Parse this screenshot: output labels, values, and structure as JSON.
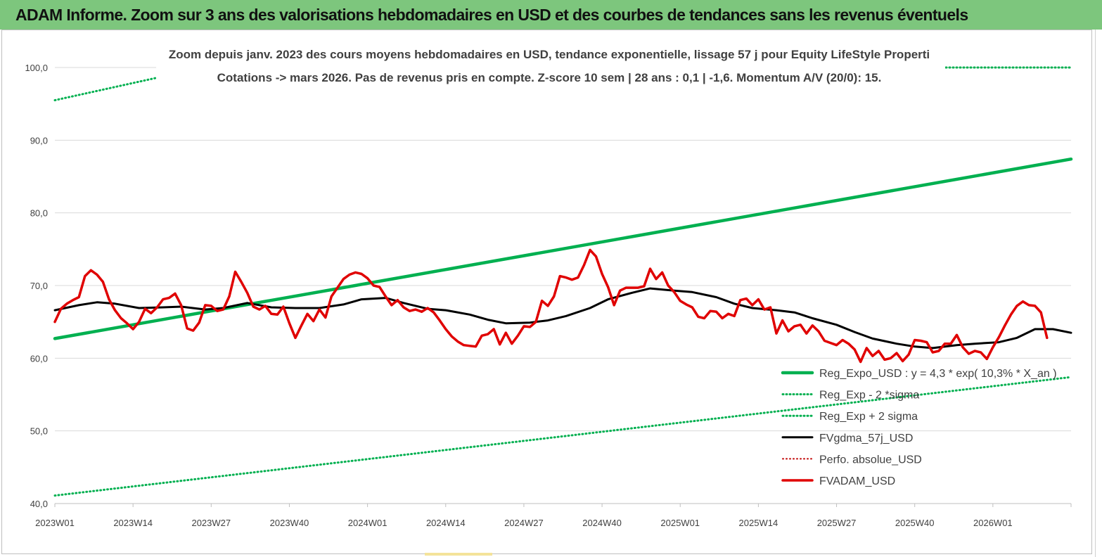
{
  "banner": {
    "title": "ADAM Informe. Zoom sur 3 ans des valorisations hebdomadaires en USD et des courbes de tendances sans les revenus éventuels",
    "color": "#7dc67d"
  },
  "chart_data": {
    "type": "line",
    "title_line1": "Zoom depuis janv. 2023 des cours moyens hebdomadaires en USD, tendance exponentielle, lissage 57 j pour Equity LifeStyle Properti",
    "title_line2": "Cotations -> mars 2026. Pas de revenus pris en compte. Z-score 10 sem | 28 ans : 0,1 | -1,6. Momentum A/V (20/0): 15.",
    "x_unit": "week index since 2023W01",
    "x_range": [
      0,
      169
    ],
    "x_tick_labels": [
      "2023W01",
      "2023W14",
      "2023W27",
      "2023W40",
      "2024W01",
      "2024W14",
      "2024W27",
      "2024W40",
      "2025W01",
      "2025W14",
      "2025W27",
      "2025W40",
      "2026W01"
    ],
    "y_tick_labels": [
      "40,0",
      "50,0",
      "60,0",
      "70,0",
      "80,0",
      "90,0",
      "100,0"
    ],
    "ylim": [
      40,
      100
    ],
    "grid": true,
    "legend_position": "bottom-right",
    "series": [
      {
        "name": "Reg_Expo_USD : y = 4,3 * exp( 10,3% * X_an )",
        "style": "solid",
        "width": 4.5,
        "color": "#00b050",
        "points": [
          [
            0,
            62.7
          ],
          [
            169,
            87.4
          ]
        ]
      },
      {
        "name": "Reg_Exp - 2 *sigma",
        "style": "dotted",
        "width": 3,
        "color": "#00b050",
        "points": [
          [
            0,
            41.1
          ],
          [
            169,
            57.4
          ]
        ]
      },
      {
        "name": "Reg_Exp + 2 sigma",
        "style": "dotted",
        "width": 3,
        "color": "#00b050",
        "points": [
          [
            0,
            95.5
          ],
          [
            17,
            98.6
          ]
        ]
      },
      {
        "name": "FVgdma_57j_USD",
        "style": "solid",
        "width": 3,
        "color": "#000000",
        "points": [
          [
            0,
            66.6
          ],
          [
            4,
            67.3
          ],
          [
            7,
            67.7
          ],
          [
            10,
            67.5
          ],
          [
            14,
            66.9
          ],
          [
            18,
            67.0
          ],
          [
            21,
            67.1
          ],
          [
            25,
            66.7
          ],
          [
            28,
            66.9
          ],
          [
            32,
            67.6
          ],
          [
            36,
            67.0
          ],
          [
            40,
            66.9
          ],
          [
            44,
            66.9
          ],
          [
            48,
            67.4
          ],
          [
            51,
            68.1
          ],
          [
            55,
            68.3
          ],
          [
            58,
            67.6
          ],
          [
            62,
            66.8
          ],
          [
            65,
            66.6
          ],
          [
            69,
            66.0
          ],
          [
            72,
            65.3
          ],
          [
            75,
            64.8
          ],
          [
            79,
            64.9
          ],
          [
            82,
            65.2
          ],
          [
            85,
            65.8
          ],
          [
            89,
            66.9
          ],
          [
            92,
            68.1
          ],
          [
            96,
            69.0
          ],
          [
            99,
            69.6
          ],
          [
            103,
            69.3
          ],
          [
            106,
            69.1
          ],
          [
            110,
            68.4
          ],
          [
            113,
            67.5
          ],
          [
            116,
            66.9
          ],
          [
            120,
            66.6
          ],
          [
            123,
            66.3
          ],
          [
            126,
            65.5
          ],
          [
            130,
            64.6
          ],
          [
            133,
            63.6
          ],
          [
            136,
            62.7
          ],
          [
            140,
            62.0
          ],
          [
            143,
            61.6
          ],
          [
            146,
            61.4
          ],
          [
            150,
            61.8
          ],
          [
            153,
            62.0
          ],
          [
            157,
            62.2
          ],
          [
            160,
            62.8
          ],
          [
            163,
            64.0
          ],
          [
            166,
            64.0
          ],
          [
            169,
            63.5
          ]
        ]
      },
      {
        "name": "Perfo. absolue_USD",
        "style": "dotted",
        "width": 2,
        "color": "#c00000",
        "points": []
      },
      {
        "name": "FVADAM_USD",
        "style": "solid",
        "width": 3.5,
        "color": "#e00000",
        "points": [
          [
            0,
            65.0
          ],
          [
            1,
            66.8
          ],
          [
            2,
            67.5
          ],
          [
            3,
            68.0
          ],
          [
            4,
            68.4
          ],
          [
            5,
            71.3
          ],
          [
            6,
            72.1
          ],
          [
            7,
            71.5
          ],
          [
            8,
            70.5
          ],
          [
            9,
            68.1
          ],
          [
            10,
            66.6
          ],
          [
            11,
            65.5
          ],
          [
            12,
            64.8
          ],
          [
            13,
            64.0
          ],
          [
            14,
            65.0
          ],
          [
            15,
            66.8
          ],
          [
            16,
            66.2
          ],
          [
            17,
            67.0
          ],
          [
            18,
            68.1
          ],
          [
            19,
            68.3
          ],
          [
            20,
            68.9
          ],
          [
            21,
            67.3
          ],
          [
            22,
            64.1
          ],
          [
            23,
            63.8
          ],
          [
            24,
            64.9
          ],
          [
            25,
            67.3
          ],
          [
            26,
            67.2
          ],
          [
            27,
            66.5
          ],
          [
            28,
            66.7
          ],
          [
            29,
            68.5
          ],
          [
            30,
            71.9
          ],
          [
            31,
            70.5
          ],
          [
            32,
            69.0
          ],
          [
            33,
            67.1
          ],
          [
            34,
            66.7
          ],
          [
            35,
            67.2
          ],
          [
            36,
            66.1
          ],
          [
            37,
            66.0
          ],
          [
            38,
            67.1
          ],
          [
            39,
            64.8
          ],
          [
            40,
            62.8
          ],
          [
            41,
            64.5
          ],
          [
            42,
            66.1
          ],
          [
            43,
            65.1
          ],
          [
            44,
            66.7
          ],
          [
            45,
            65.6
          ],
          [
            46,
            68.5
          ],
          [
            47,
            69.7
          ],
          [
            48,
            70.9
          ],
          [
            49,
            71.5
          ],
          [
            50,
            71.8
          ],
          [
            51,
            71.6
          ],
          [
            52,
            71.0
          ],
          [
            53,
            70.0
          ],
          [
            54,
            69.8
          ],
          [
            55,
            68.5
          ],
          [
            56,
            67.3
          ],
          [
            57,
            68.0
          ],
          [
            58,
            67.0
          ],
          [
            59,
            66.5
          ],
          [
            60,
            66.7
          ],
          [
            61,
            66.4
          ],
          [
            62,
            66.9
          ],
          [
            63,
            66.3
          ],
          [
            64,
            65.2
          ],
          [
            65,
            64.0
          ],
          [
            66,
            63.0
          ],
          [
            67,
            62.3
          ],
          [
            68,
            61.8
          ],
          [
            69,
            61.7
          ],
          [
            70,
            61.6
          ],
          [
            71,
            63.1
          ],
          [
            72,
            63.3
          ],
          [
            73,
            64.0
          ],
          [
            74,
            61.9
          ],
          [
            75,
            63.5
          ],
          [
            76,
            62.0
          ],
          [
            77,
            63.1
          ],
          [
            78,
            64.4
          ],
          [
            79,
            64.3
          ],
          [
            80,
            65.0
          ],
          [
            81,
            67.9
          ],
          [
            82,
            67.2
          ],
          [
            83,
            68.5
          ],
          [
            84,
            71.3
          ],
          [
            85,
            71.1
          ],
          [
            86,
            70.8
          ],
          [
            87,
            71.1
          ],
          [
            88,
            72.8
          ],
          [
            89,
            74.9
          ],
          [
            90,
            74.0
          ],
          [
            91,
            71.6
          ],
          [
            92,
            69.8
          ],
          [
            93,
            67.3
          ],
          [
            94,
            69.3
          ],
          [
            95,
            69.7
          ],
          [
            96,
            69.7
          ],
          [
            97,
            69.7
          ],
          [
            98,
            69.9
          ],
          [
            99,
            72.3
          ],
          [
            100,
            70.9
          ],
          [
            101,
            71.8
          ],
          [
            102,
            70.0
          ],
          [
            103,
            69.1
          ],
          [
            104,
            67.9
          ],
          [
            105,
            67.4
          ],
          [
            106,
            67.0
          ],
          [
            107,
            65.7
          ],
          [
            108,
            65.5
          ],
          [
            109,
            66.5
          ],
          [
            110,
            66.4
          ],
          [
            111,
            65.5
          ],
          [
            112,
            66.1
          ],
          [
            113,
            65.8
          ],
          [
            114,
            68.0
          ],
          [
            115,
            68.2
          ],
          [
            116,
            67.3
          ],
          [
            117,
            68.1
          ],
          [
            118,
            66.7
          ],
          [
            119,
            67.0
          ],
          [
            120,
            63.4
          ],
          [
            121,
            65.2
          ],
          [
            122,
            63.7
          ],
          [
            123,
            64.4
          ],
          [
            124,
            64.6
          ],
          [
            125,
            63.4
          ],
          [
            126,
            64.5
          ],
          [
            127,
            63.7
          ],
          [
            128,
            62.4
          ],
          [
            129,
            62.1
          ],
          [
            130,
            61.8
          ],
          [
            131,
            62.5
          ],
          [
            132,
            62.0
          ],
          [
            133,
            61.2
          ],
          [
            134,
            59.5
          ],
          [
            135,
            61.4
          ],
          [
            136,
            60.3
          ],
          [
            137,
            61.0
          ],
          [
            138,
            59.8
          ],
          [
            139,
            60.0
          ],
          [
            140,
            60.7
          ],
          [
            141,
            59.6
          ],
          [
            142,
            60.5
          ],
          [
            143,
            62.5
          ],
          [
            144,
            62.4
          ],
          [
            145,
            62.2
          ],
          [
            146,
            60.8
          ],
          [
            147,
            61.0
          ],
          [
            148,
            62.0
          ],
          [
            149,
            62.0
          ],
          [
            150,
            63.2
          ],
          [
            151,
            61.5
          ],
          [
            152,
            60.6
          ],
          [
            153,
            61.0
          ],
          [
            154,
            60.8
          ],
          [
            155,
            59.9
          ],
          [
            156,
            61.5
          ],
          [
            157,
            62.9
          ],
          [
            158,
            64.5
          ],
          [
            159,
            66.0
          ],
          [
            160,
            67.2
          ],
          [
            161,
            67.8
          ],
          [
            162,
            67.3
          ],
          [
            163,
            67.2
          ],
          [
            164,
            66.3
          ],
          [
            165,
            62.8
          ]
        ]
      }
    ]
  }
}
